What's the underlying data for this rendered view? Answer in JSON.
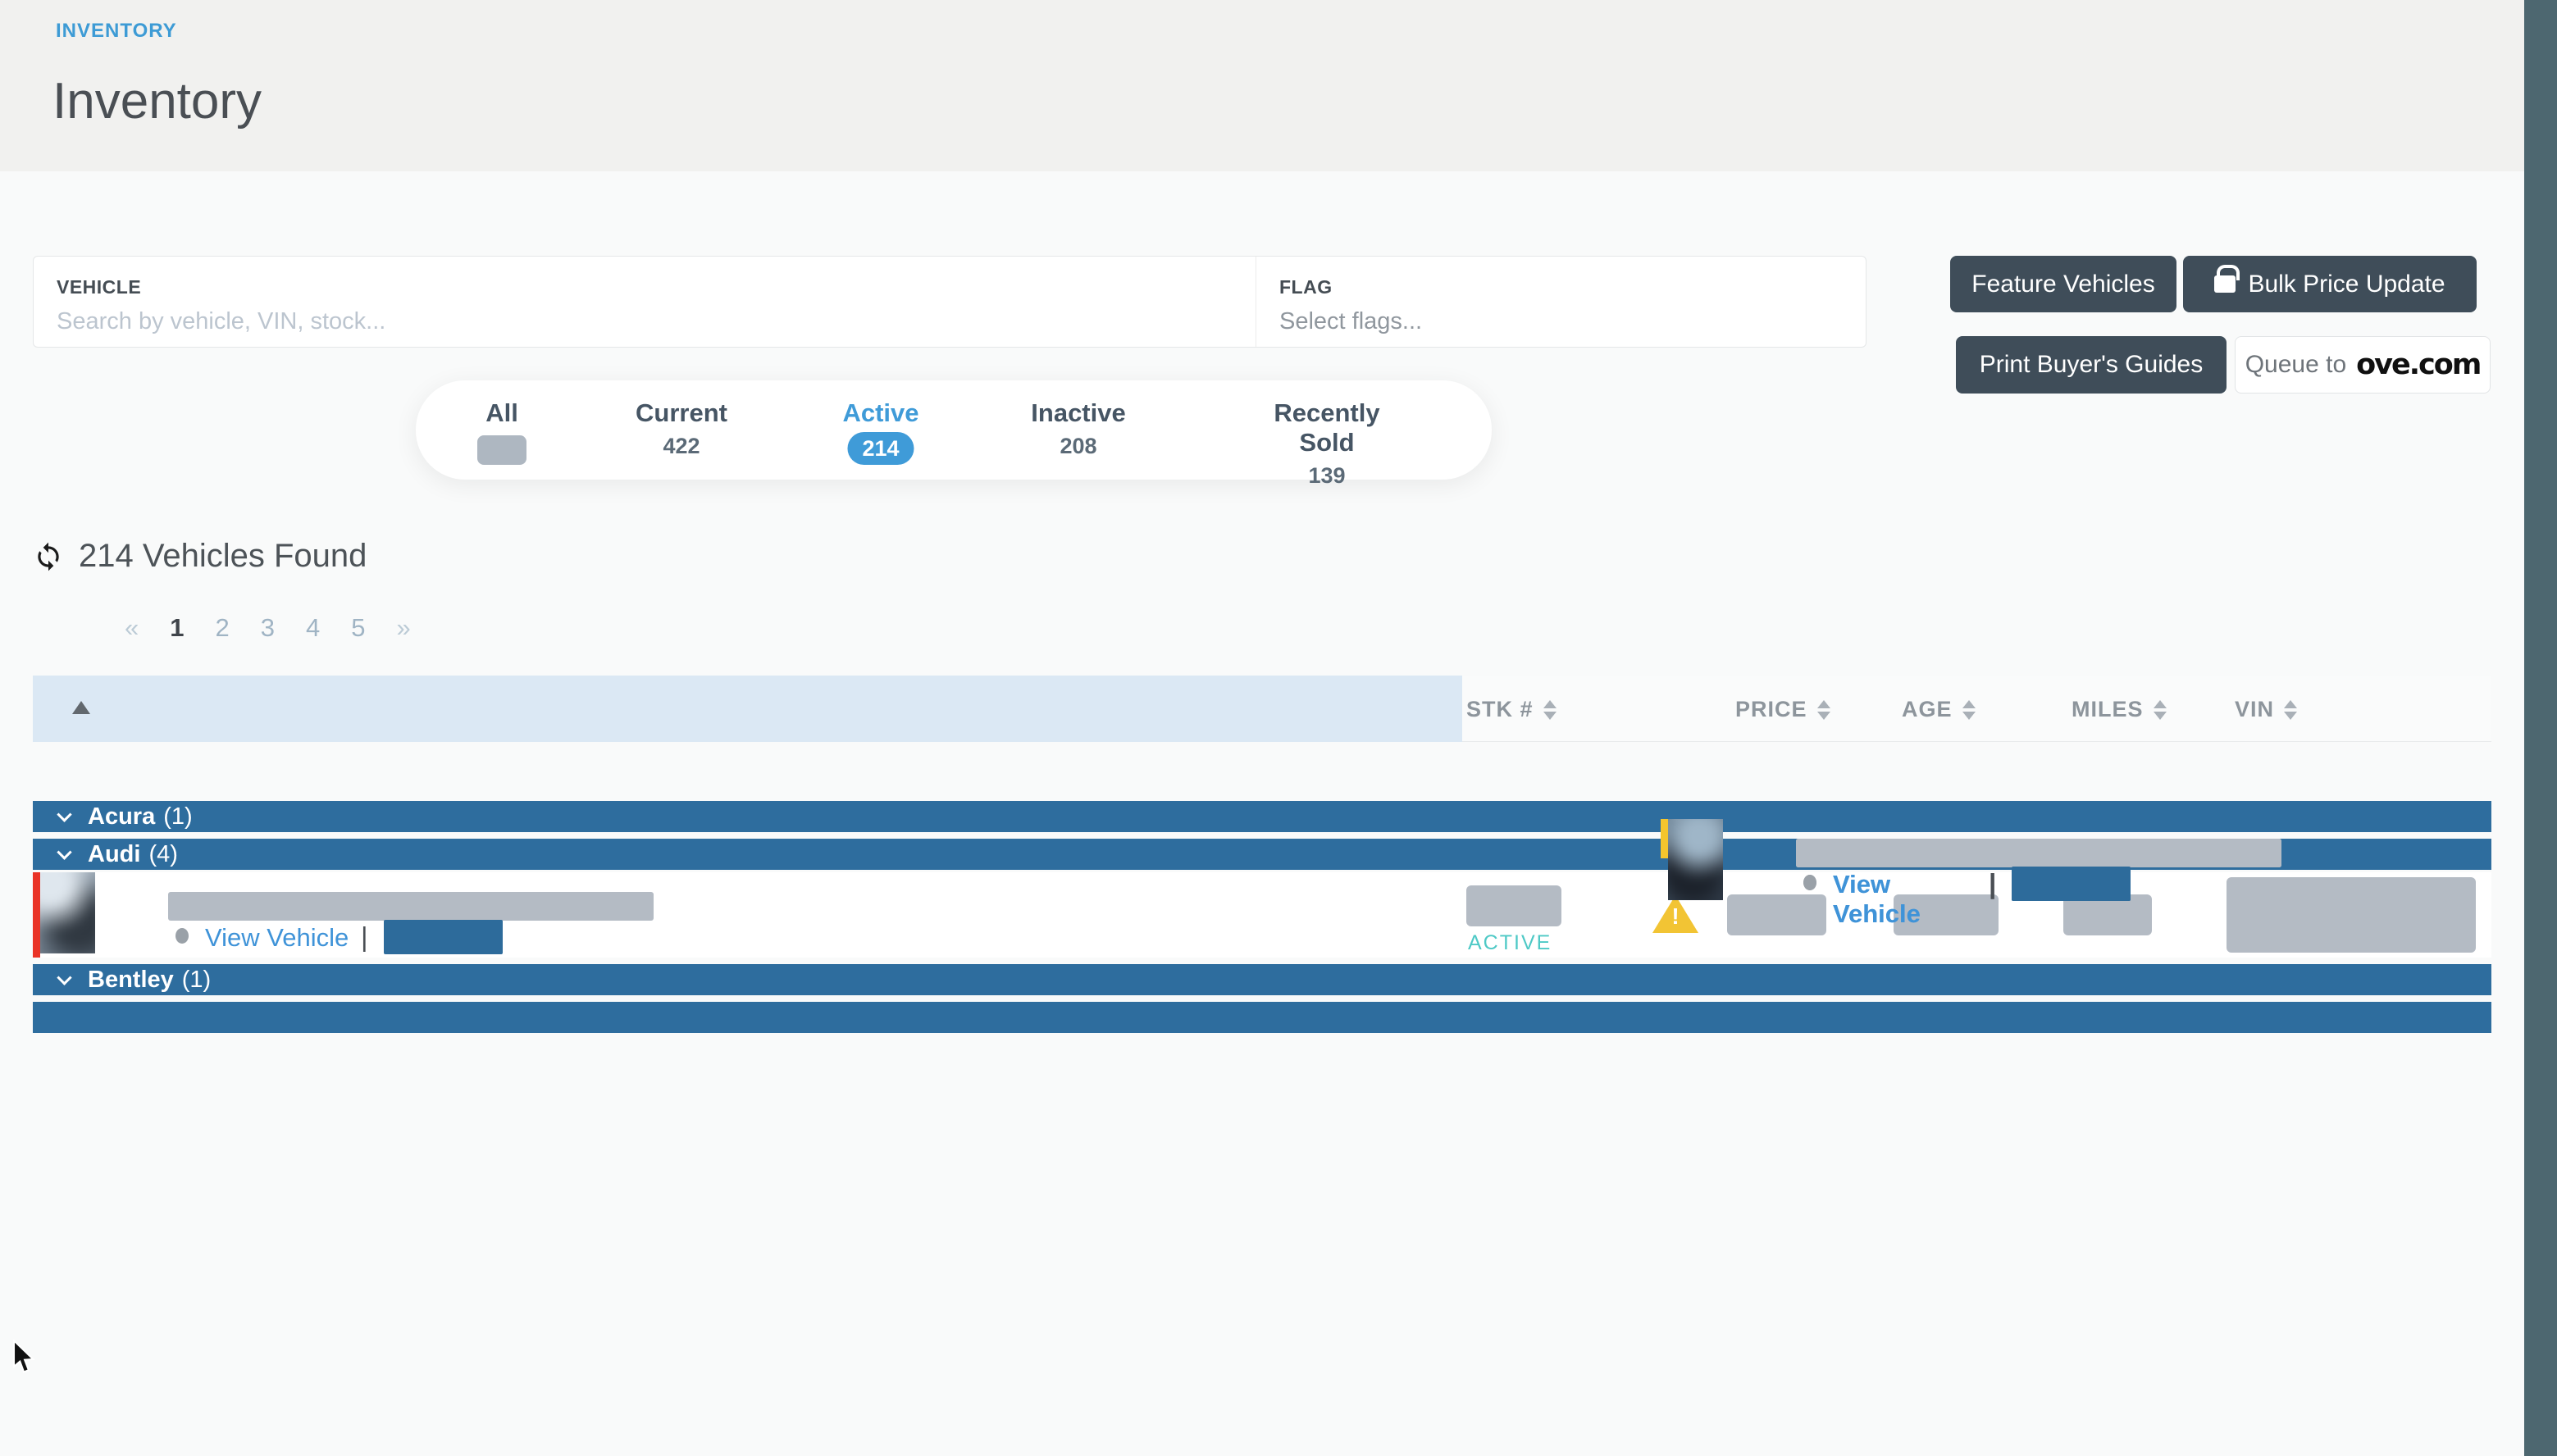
{
  "page": {
    "breadcrumb": "INVENTORY",
    "title": "Inventory"
  },
  "filters": {
    "vehicle": {
      "label": "VEHICLE",
      "placeholder": "Search by vehicle, VIN, stock..."
    },
    "flag": {
      "label": "FLAG",
      "placeholder": "Select flags..."
    }
  },
  "actions": {
    "feature": "Feature Vehicles",
    "bulk": "Bulk Price Update",
    "print": "Print Buyer's Guides",
    "queue_prefix": "Queue to",
    "queue_logo": "ove.com"
  },
  "tabs": [
    {
      "label": "All",
      "count": ""
    },
    {
      "label": "Current",
      "count": "422"
    },
    {
      "label": "Active",
      "count": "214"
    },
    {
      "label": "Inactive",
      "count": "208"
    },
    {
      "label": "Recently Sold",
      "count": "139"
    }
  ],
  "results": {
    "summary": "214 Vehicles Found"
  },
  "pagination": {
    "prev": "«",
    "pages": [
      "1",
      "2",
      "3",
      "4",
      "5"
    ],
    "next": "»",
    "current_page": "1"
  },
  "table": {
    "columns": {
      "stk": "STK #",
      "price": "PRICE",
      "age": "AGE",
      "miles": "MILES",
      "vin": "VIN"
    },
    "view_link": "View Vehicle",
    "separator": "|",
    "status_label": "ACTIVE"
  },
  "groups": [
    {
      "name": "Acura",
      "count_display": "(1)",
      "rows": [
        {
          "shade": "light",
          "stripe": "red",
          "alert": "error",
          "thumb": "t1"
        }
      ]
    },
    {
      "name": "Audi",
      "count_display": "(4)",
      "rows": [
        {
          "shade": "light",
          "stripe": "red",
          "alert": "error",
          "thumb": "t2"
        },
        {
          "shade": "gray",
          "stripe": "red",
          "alert": "error",
          "thumb": "t3"
        },
        {
          "shade": "light",
          "stripe": "red",
          "alert": "warning",
          "thumb": "t4"
        },
        {
          "shade": "gray",
          "stripe": "red",
          "alert": "error",
          "thumb": "t5"
        }
      ]
    },
    {
      "name": "Bentley",
      "count_display": "(1)",
      "rows": [
        {
          "shade": "gray",
          "stripe": "yellow",
          "alert": "error",
          "thumb": "t6"
        }
      ]
    }
  ],
  "icons": {
    "refresh": "refresh-icon",
    "lock": "lock-icon",
    "sort": "sort-updown-icon",
    "sort_asc": "sort-asc-icon",
    "chevron_down": "chevron-down-icon",
    "alert_error": "alert-circle-icon",
    "alert_warning": "warning-triangle-icon",
    "cursor": "mouse-cursor-icon"
  },
  "colors": {
    "accent_blue": "#3f9bd8",
    "group_bar_blue": "#2e6d9e",
    "redaction_blue": "#2d6b9b",
    "redaction_gray": "#b4bbc4",
    "status_teal": "#4ec9c6",
    "alert_red": "#e83a30",
    "alert_yellow": "#f2c434",
    "stripe_red": "#ea3326",
    "stripe_yellow": "#f4c52d",
    "button_dark": "#3f4d59",
    "edge_strip": "#4d6770",
    "header_cell_blue": "#dbe8f4"
  }
}
